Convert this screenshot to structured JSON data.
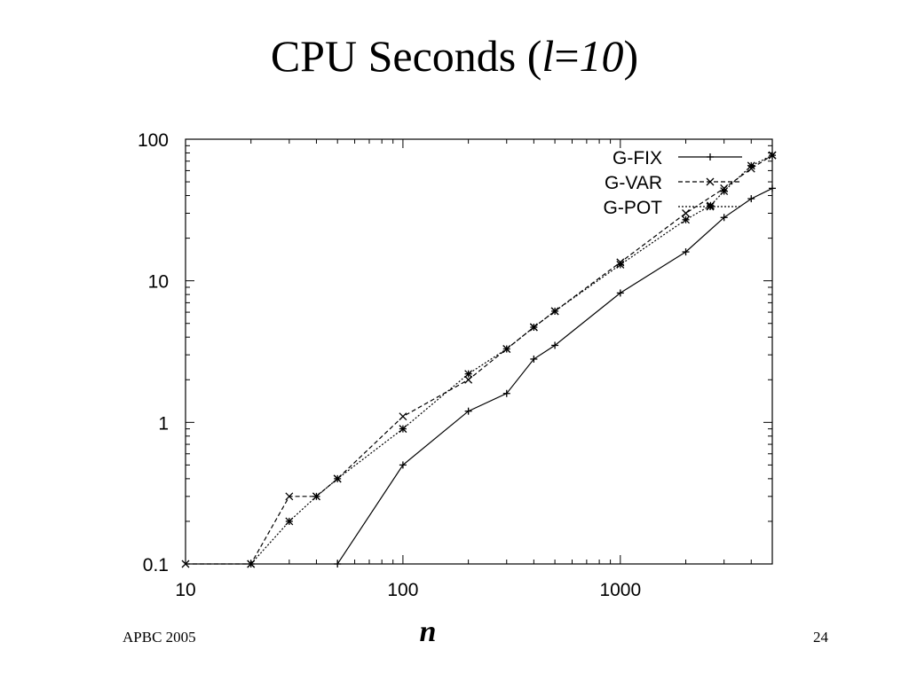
{
  "slide": {
    "title_prefix": "CPU Seconds (",
    "title_italic_l": "l",
    "title_eq": "=",
    "title_italic_10": "10",
    "title_suffix": ")",
    "footer_left": "APBC 2005",
    "footer_right": "24"
  },
  "chart_data": {
    "type": "line",
    "xlabel": "n",
    "ylabel": "",
    "xscale": "log",
    "yscale": "log",
    "xlim": [
      10,
      5000
    ],
    "ylim": [
      0.1,
      100
    ],
    "xticks": [
      10,
      100,
      1000
    ],
    "xtick_labels": [
      "10",
      "100",
      "1000"
    ],
    "yticks": [
      0.1,
      1,
      10,
      100
    ],
    "ytick_labels": [
      "0.1",
      "1",
      "10",
      "100"
    ],
    "grid": false,
    "legend_position": "top-right",
    "series": [
      {
        "name": "G-FIX",
        "line": "solid",
        "marker": "plus",
        "points": [
          [
            50,
            0.1
          ],
          [
            100,
            0.5
          ],
          [
            200,
            1.2
          ],
          [
            300,
            1.6
          ],
          [
            400,
            2.8
          ],
          [
            500,
            3.5
          ],
          [
            1000,
            8.2
          ],
          [
            2000,
            16
          ],
          [
            3000,
            28
          ],
          [
            4000,
            38
          ],
          [
            5000,
            45
          ]
        ]
      },
      {
        "name": "G-VAR",
        "line": "dashed",
        "marker": "cross",
        "points": [
          [
            10,
            0.1
          ],
          [
            20,
            0.1
          ],
          [
            30,
            0.3
          ],
          [
            40,
            0.3
          ],
          [
            50,
            0.4
          ],
          [
            100,
            1.1
          ],
          [
            200,
            2.0
          ],
          [
            300,
            3.3
          ],
          [
            400,
            4.7
          ],
          [
            500,
            6.1
          ],
          [
            1000,
            13.5
          ],
          [
            2000,
            30
          ],
          [
            3000,
            45
          ],
          [
            4000,
            62
          ],
          [
            5000,
            77
          ]
        ]
      },
      {
        "name": "G-POT",
        "line": "dotted",
        "marker": "star",
        "points": [
          [
            20,
            0.1
          ],
          [
            30,
            0.2
          ],
          [
            40,
            0.3
          ],
          [
            50,
            0.4
          ],
          [
            100,
            0.9
          ],
          [
            200,
            2.2
          ],
          [
            300,
            3.3
          ],
          [
            400,
            4.7
          ],
          [
            500,
            6.1
          ],
          [
            1000,
            13
          ],
          [
            2000,
            27
          ],
          [
            2600,
            34
          ],
          [
            3000,
            43
          ],
          [
            4000,
            65
          ],
          [
            5000,
            77
          ]
        ]
      }
    ]
  }
}
